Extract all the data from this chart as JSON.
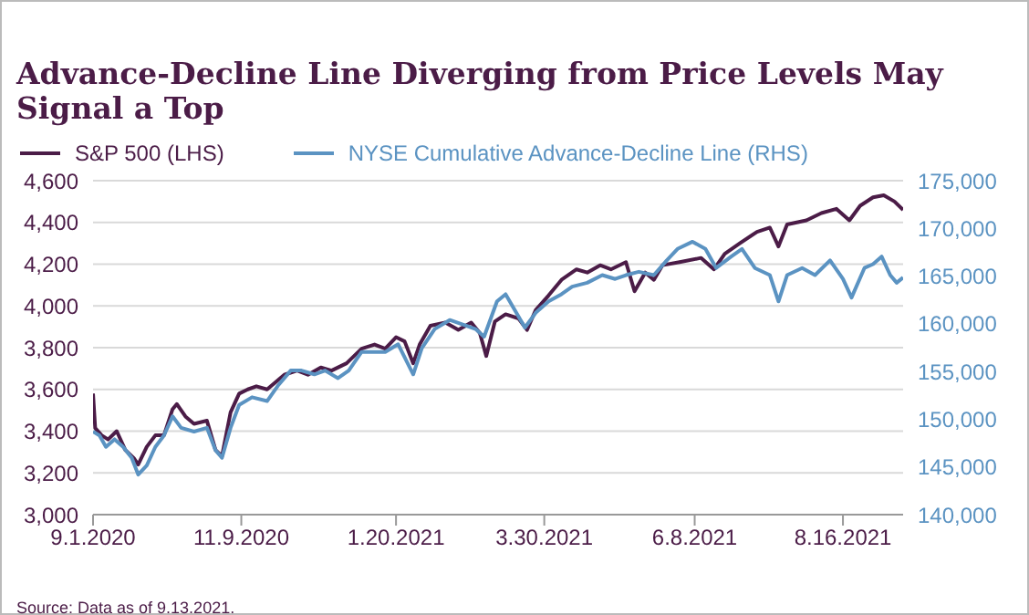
{
  "chart_data": {
    "type": "line",
    "title": "Advance-Decline Line Diverging from Price Levels May Signal a Top",
    "annotations": [
      "Source: Data as of 9.13.2021."
    ],
    "legend": "top left",
    "grid": "y",
    "xlim": [
      "2020-09-01",
      "2021-09-13"
    ],
    "xticks": [
      {
        "value": "2020-09-01",
        "label": "9.1.2020"
      },
      {
        "value": "2020-11-09",
        "label": "11.9.2020"
      },
      {
        "value": "2021-01-20",
        "label": "1.20.2021"
      },
      {
        "value": "2021-03-30",
        "label": "3.30.2021"
      },
      {
        "value": "2021-06-08",
        "label": "6.8.2021"
      },
      {
        "value": "2021-08-16",
        "label": "8.16.2021"
      }
    ],
    "ylim": [
      3000,
      4600
    ],
    "yticks": [
      {
        "value": 3000,
        "label": "3,000"
      },
      {
        "value": 3200,
        "label": "3,200"
      },
      {
        "value": 3400,
        "label": "3,400"
      },
      {
        "value": 3600,
        "label": "3,600"
      },
      {
        "value": 3800,
        "label": "3,800"
      },
      {
        "value": 4000,
        "label": "4,000"
      },
      {
        "value": 4200,
        "label": "4,200"
      },
      {
        "value": 4400,
        "label": "4,400"
      },
      {
        "value": 4600,
        "label": "4,600"
      }
    ],
    "y2lim": [
      140000,
      175000
    ],
    "y2ticks": [
      {
        "value": 140000,
        "label": "140,000"
      },
      {
        "value": 145000,
        "label": "145,000"
      },
      {
        "value": 150000,
        "label": "150,000"
      },
      {
        "value": 155000,
        "label": "155,000"
      },
      {
        "value": 160000,
        "label": "160,000"
      },
      {
        "value": 165000,
        "label": "165,000"
      },
      {
        "value": 170000,
        "label": "170,000"
      },
      {
        "value": 175000,
        "label": "175,000"
      }
    ],
    "series": [
      {
        "name": "S&P 500 (LHS)",
        "color": "#4b1c47",
        "x": [
          "2020-09-01",
          "2020-09-02",
          "2020-09-05",
          "2020-09-08",
          "2020-09-12",
          "2020-09-16",
          "2020-09-20",
          "2020-09-22",
          "2020-09-26",
          "2020-09-30",
          "2020-10-04",
          "2020-10-08",
          "2020-10-10",
          "2020-10-14",
          "2020-10-18",
          "2020-10-24",
          "2020-10-28",
          "2020-10-31",
          "2020-11-04",
          "2020-11-08",
          "2020-11-12",
          "2020-11-16",
          "2020-11-21",
          "2020-11-25",
          "2020-11-29",
          "2020-12-05",
          "2020-12-10",
          "2020-12-16",
          "2020-12-21",
          "2020-12-28",
          "2021-01-04",
          "2021-01-10",
          "2021-01-15",
          "2021-01-20",
          "2021-01-24",
          "2021-01-28",
          "2021-01-31",
          "2021-02-05",
          "2021-02-12",
          "2021-02-18",
          "2021-02-24",
          "2021-02-28",
          "2021-03-03",
          "2021-03-07",
          "2021-03-12",
          "2021-03-18",
          "2021-03-22",
          "2021-03-26",
          "2021-04-01",
          "2021-04-07",
          "2021-04-14",
          "2021-04-19",
          "2021-04-25",
          "2021-04-30",
          "2021-05-07",
          "2021-05-11",
          "2021-05-16",
          "2021-05-20",
          "2021-05-24",
          "2021-06-01",
          "2021-06-11",
          "2021-06-17",
          "2021-06-22",
          "2021-06-29",
          "2021-07-07",
          "2021-07-13",
          "2021-07-17",
          "2021-07-21",
          "2021-07-30",
          "2021-08-06",
          "2021-08-13",
          "2021-08-19",
          "2021-08-24",
          "2021-08-30",
          "2021-09-04",
          "2021-09-09",
          "2021-09-13"
        ],
        "values": [
          3580,
          3415,
          3380,
          3360,
          3400,
          3310,
          3270,
          3240,
          3325,
          3380,
          3380,
          3505,
          3530,
          3470,
          3435,
          3450,
          3310,
          3280,
          3490,
          3580,
          3600,
          3615,
          3600,
          3635,
          3670,
          3690,
          3670,
          3705,
          3690,
          3725,
          3795,
          3815,
          3795,
          3850,
          3830,
          3725,
          3815,
          3905,
          3920,
          3885,
          3920,
          3870,
          3760,
          3925,
          3960,
          3940,
          3885,
          3980,
          4050,
          4125,
          4175,
          4160,
          4195,
          4175,
          4210,
          4070,
          4160,
          4125,
          4195,
          4210,
          4230,
          4175,
          4250,
          4300,
          4355,
          4375,
          4285,
          4390,
          4410,
          4445,
          4465,
          4410,
          4480,
          4520,
          4530,
          4500,
          4460
        ]
      },
      {
        "name": "NYSE Cumulative Advance-Decline Line (RHS)",
        "color": "#5b93c2",
        "axis": "y2",
        "x": [
          "2020-09-01",
          "2020-09-04",
          "2020-09-07",
          "2020-09-11",
          "2020-09-15",
          "2020-09-19",
          "2020-09-22",
          "2020-09-26",
          "2020-09-30",
          "2020-10-04",
          "2020-10-08",
          "2020-10-12",
          "2020-10-18",
          "2020-10-24",
          "2020-10-28",
          "2020-10-31",
          "2020-11-04",
          "2020-11-08",
          "2020-11-14",
          "2020-11-21",
          "2020-11-26",
          "2020-12-02",
          "2020-12-07",
          "2020-12-13",
          "2020-12-18",
          "2020-12-24",
          "2020-12-29",
          "2021-01-04",
          "2021-01-10",
          "2021-01-15",
          "2021-01-21",
          "2021-01-28",
          "2021-02-01",
          "2021-02-07",
          "2021-02-14",
          "2021-02-21",
          "2021-02-26",
          "2021-03-02",
          "2021-03-08",
          "2021-03-12",
          "2021-03-17",
          "2021-03-21",
          "2021-03-26",
          "2021-04-01",
          "2021-04-07",
          "2021-04-12",
          "2021-04-19",
          "2021-04-26",
          "2021-05-02",
          "2021-05-07",
          "2021-05-13",
          "2021-05-20",
          "2021-05-26",
          "2021-05-31",
          "2021-06-07",
          "2021-06-13",
          "2021-06-18",
          "2021-06-25",
          "2021-06-30",
          "2021-07-06",
          "2021-07-13",
          "2021-07-17",
          "2021-07-21",
          "2021-07-28",
          "2021-08-03",
          "2021-08-10",
          "2021-08-16",
          "2021-08-20",
          "2021-08-26",
          "2021-08-30",
          "2021-09-03",
          "2021-09-07",
          "2021-09-10",
          "2021-09-13"
        ],
        "values": [
          148700,
          148300,
          147100,
          147900,
          147100,
          145950,
          144200,
          145150,
          147100,
          148300,
          150300,
          149100,
          148700,
          149100,
          146750,
          145950,
          149100,
          151500,
          152300,
          151900,
          153500,
          155100,
          155100,
          154700,
          155100,
          154300,
          155100,
          157050,
          157050,
          157050,
          157850,
          154700,
          157450,
          159450,
          160400,
          159850,
          159450,
          158650,
          162350,
          163100,
          161150,
          159600,
          161150,
          162350,
          163100,
          163900,
          164300,
          165100,
          164700,
          165100,
          165450,
          165100,
          166650,
          167850,
          168600,
          167850,
          165850,
          167050,
          167850,
          165850,
          165100,
          162350,
          165100,
          165850,
          165100,
          166650,
          164700,
          162750,
          165850,
          166250,
          167050,
          165100,
          164300,
          164850
        ]
      }
    ]
  }
}
